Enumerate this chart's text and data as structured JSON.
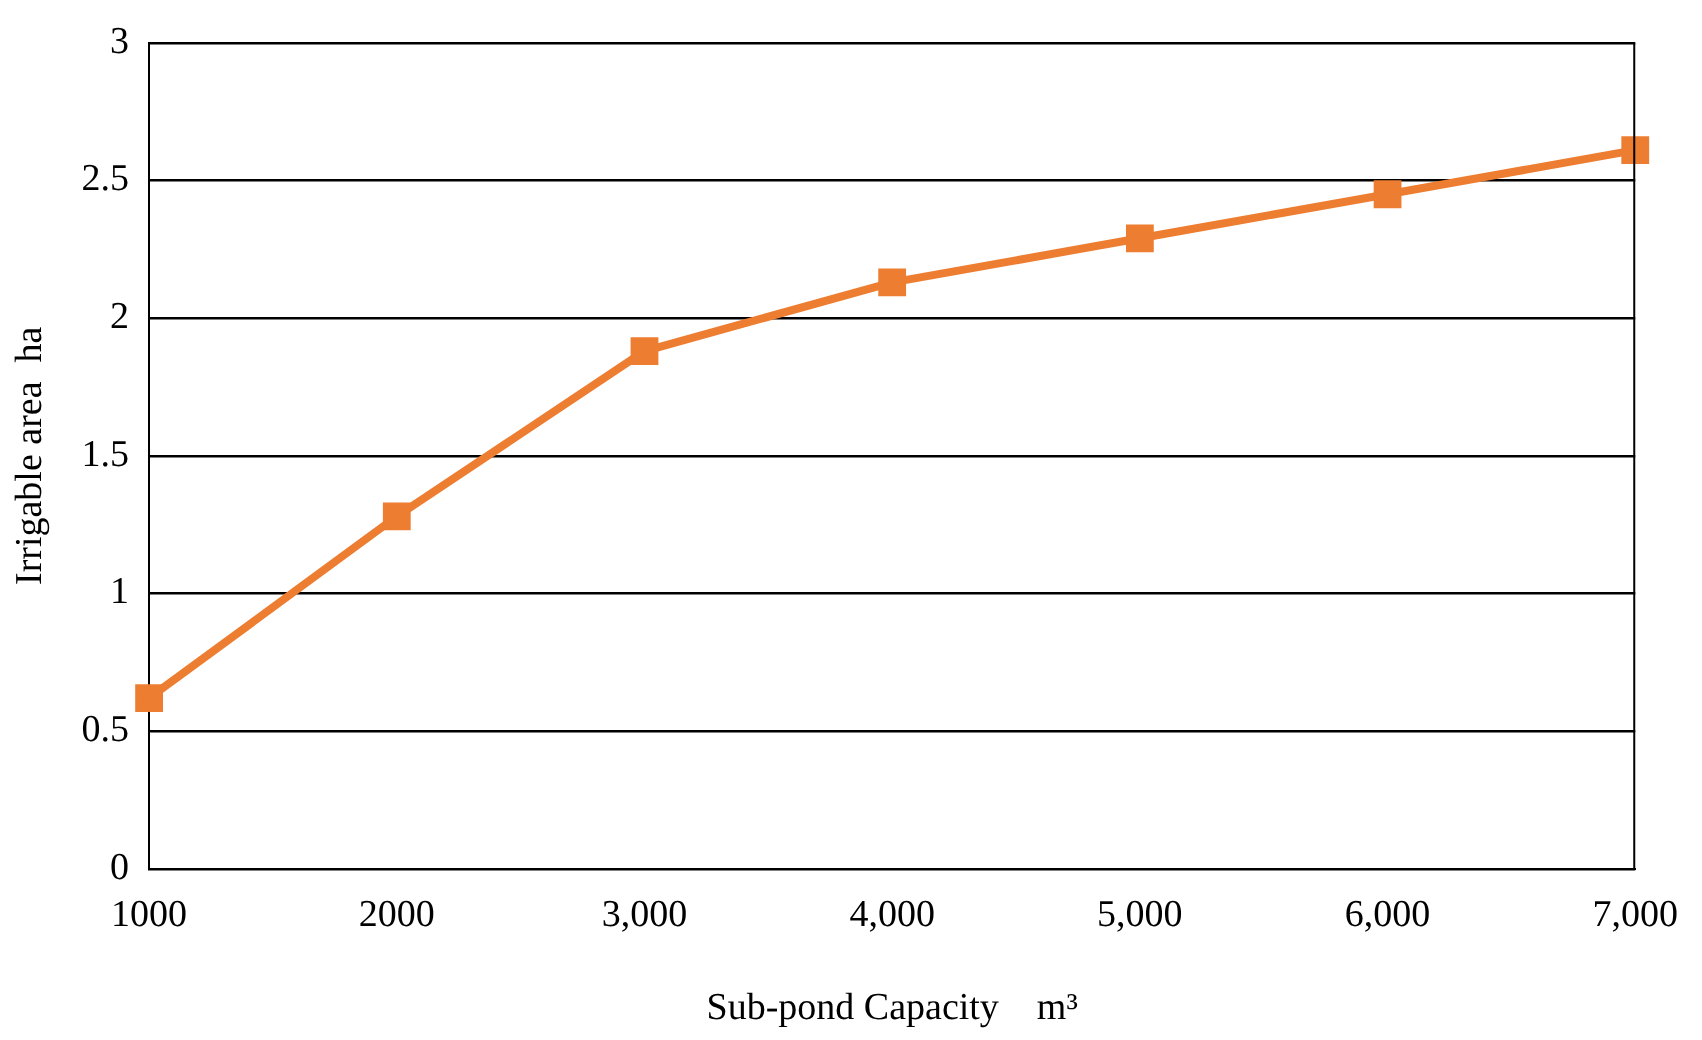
{
  "chart_data": {
    "type": "line",
    "xlabel": "Sub-pond Capacity　m³",
    "ylabel": "Irrigable area  ha",
    "categories": [
      "1000",
      "2000",
      "3,000",
      "4,000",
      "5,000",
      "6,000",
      "7,000"
    ],
    "series": [
      {
        "color": "#ed7d31",
        "values": [
          0.62,
          1.28,
          1.88,
          2.13,
          2.29,
          2.45,
          2.61
        ]
      }
    ],
    "ylim": [
      0,
      3
    ],
    "yticks": [
      0,
      0.5,
      1,
      1.5,
      2,
      2.5,
      3
    ],
    "grid": "y",
    "marker": "square",
    "line_style": "solid",
    "legend": false
  }
}
